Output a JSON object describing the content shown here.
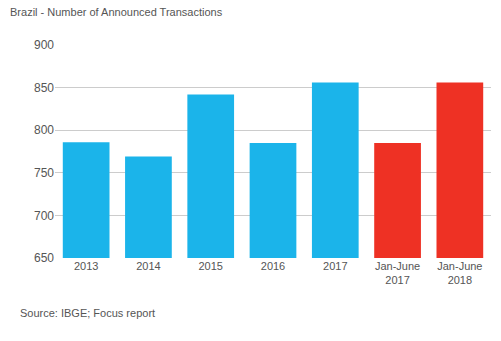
{
  "chart_data": {
    "type": "bar",
    "title": "Brazil - Number of Announced Transactions",
    "categories": [
      "2013",
      "2014",
      "2015",
      "2016",
      "2017",
      "Jan-June\n2017",
      "Jan-June\n2018"
    ],
    "values": [
      786,
      769,
      842,
      785,
      856,
      785,
      856
    ],
    "colors": [
      "#1bb4ea",
      "#1bb4ea",
      "#1bb4ea",
      "#1bb4ea",
      "#1bb4ea",
      "#ee3124",
      "#ee3124"
    ],
    "ylim": [
      650,
      900
    ],
    "yticks": [
      650,
      700,
      750,
      800,
      850,
      900
    ],
    "grid": true,
    "source": "Source: IBGE; Focus report"
  }
}
